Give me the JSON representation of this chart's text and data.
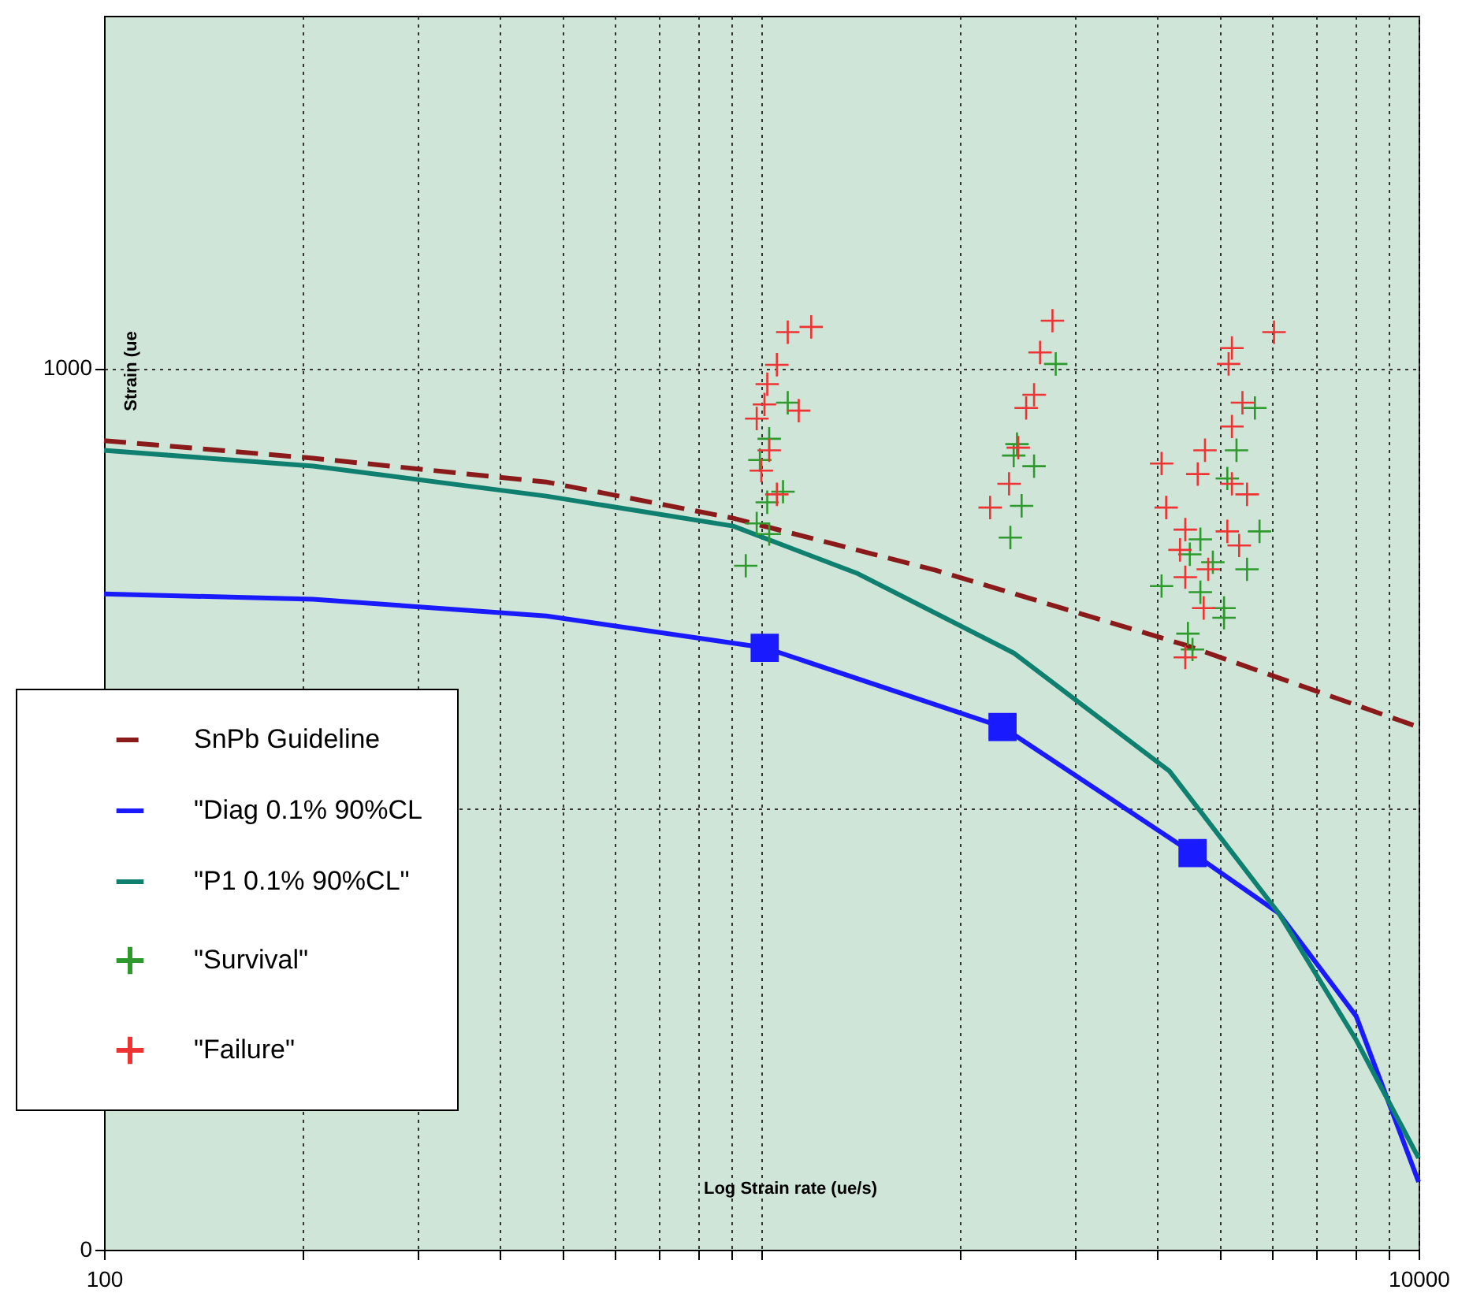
{
  "chart_data": {
    "type": "line",
    "xlabel": "Log Strain rate (ue/s)",
    "ylabel": "Strain (ue",
    "log": "x",
    "xlim": [
      100,
      10000
    ],
    "ylim": [
      0,
      1400
    ],
    "xticks": [
      100,
      {
        "value": 200,
        "label": null
      },
      {
        "value": 300,
        "label": null
      },
      {
        "value": 400,
        "label": null
      },
      {
        "value": 500,
        "label": null
      },
      {
        "value": 600,
        "label": null
      },
      {
        "value": 700,
        "label": null
      },
      {
        "value": 800,
        "label": null
      },
      {
        "value": 900,
        "label": null
      },
      {
        "value": 1000,
        "label": null
      },
      {
        "value": 2000,
        "label": null
      },
      {
        "value": 3000,
        "label": null
      },
      {
        "value": 4000,
        "label": null
      },
      {
        "value": 5000,
        "label": null
      },
      {
        "value": 6000,
        "label": null
      },
      {
        "value": 7000,
        "label": null
      },
      {
        "value": 8000,
        "label": null
      },
      {
        "value": 9000,
        "label": null
      },
      10000
    ],
    "yticks": [
      0,
      {
        "value": 500,
        "label": null
      },
      1000
    ],
    "grid": true,
    "legend": "left",
    "series": [
      {
        "name": "SnPb Guideline",
        "color": "#8b1a1a",
        "line_style": "dashed",
        "marker": "none",
        "x": [
          100,
          208,
          471,
          906,
          1841,
          4418,
          10000
        ],
        "values": [
          918,
          898,
          871,
          830,
          771,
          686,
          593
        ]
      },
      {
        "name": "\"Diag 0.1% 90%CL",
        "color": "#1a1aff",
        "line_style": "solid",
        "marker": "none",
        "x": [
          100,
          208,
          471,
          1012,
          2328,
          4530,
          6124,
          8036,
          10000
        ],
        "values": [
          744,
          738,
          719,
          683,
          593,
          450,
          382,
          265,
          77
        ]
      },
      {
        "name": "\"P1 0.1% 90%CL\"",
        "color": "#0f8070",
        "line_style": "solid",
        "marker": "none",
        "x": [
          100,
          208,
          471,
          906,
          1403,
          2421,
          4178,
          6124,
          8036,
          10000
        ],
        "values": [
          907,
          889,
          855,
          821,
          767,
          677,
          543,
          382,
          238,
          104
        ]
      },
      {
        "type": "scatter",
        "color": "#1a1aff",
        "marker": "square",
        "x": [
          1012,
          2328,
          4530
        ],
        "values": [
          683,
          593,
          450
        ]
      },
      {
        "name": "\"Survival\"",
        "type": "scatter",
        "color": "#2e9a2e",
        "marker": "cross",
        "x": [
          1097,
          1028,
          995,
          1079,
          984,
          1028,
          947,
          1021,
          2805,
          2449,
          2600,
          2421,
          2489,
          2393,
          5636,
          5284,
          5117,
          4656,
          5728,
          4487,
          4864,
          5483,
          4064,
          4656,
          5058,
          5058,
          4457,
          4529
        ],
        "values": [
          961,
          920,
          896,
          860,
          824,
          812,
          776,
          848,
          1005,
          914,
          889,
          901,
          844,
          808,
          955,
          907,
          875,
          806,
          815,
          789,
          780,
          772,
          753,
          746,
          728,
          717,
          699,
          681
        ]
      },
      {
        "name": "\"Failure\"",
        "type": "scatter",
        "color": "#ee3333",
        "marker": "cross",
        "x": [
          1097,
          1191,
          1056,
          1021,
          1011,
          1140,
          984,
          1028,
          1000,
          1056,
          2773,
          2655,
          2600,
          2529,
          2460,
          2382,
          2229,
          6026,
          5200,
          5140,
          5395,
          5200,
          4732,
          4064,
          4613,
          5200,
          5483,
          4130,
          4416,
          5117,
          4335,
          5333,
          4416,
          4786,
          4710,
          4416
        ],
        "values": [
          1041,
          1047,
          1004,
          982,
          959,
          952,
          943,
          907,
          884,
          857,
          1054,
          1018,
          970,
          955,
          910,
          869,
          842,
          1041,
          1023,
          1005,
          961,
          934,
          907,
          892,
          880,
          869,
          857,
          842,
          817,
          815,
          794,
          799,
          763,
          772,
          728,
          672
        ]
      }
    ]
  }
}
